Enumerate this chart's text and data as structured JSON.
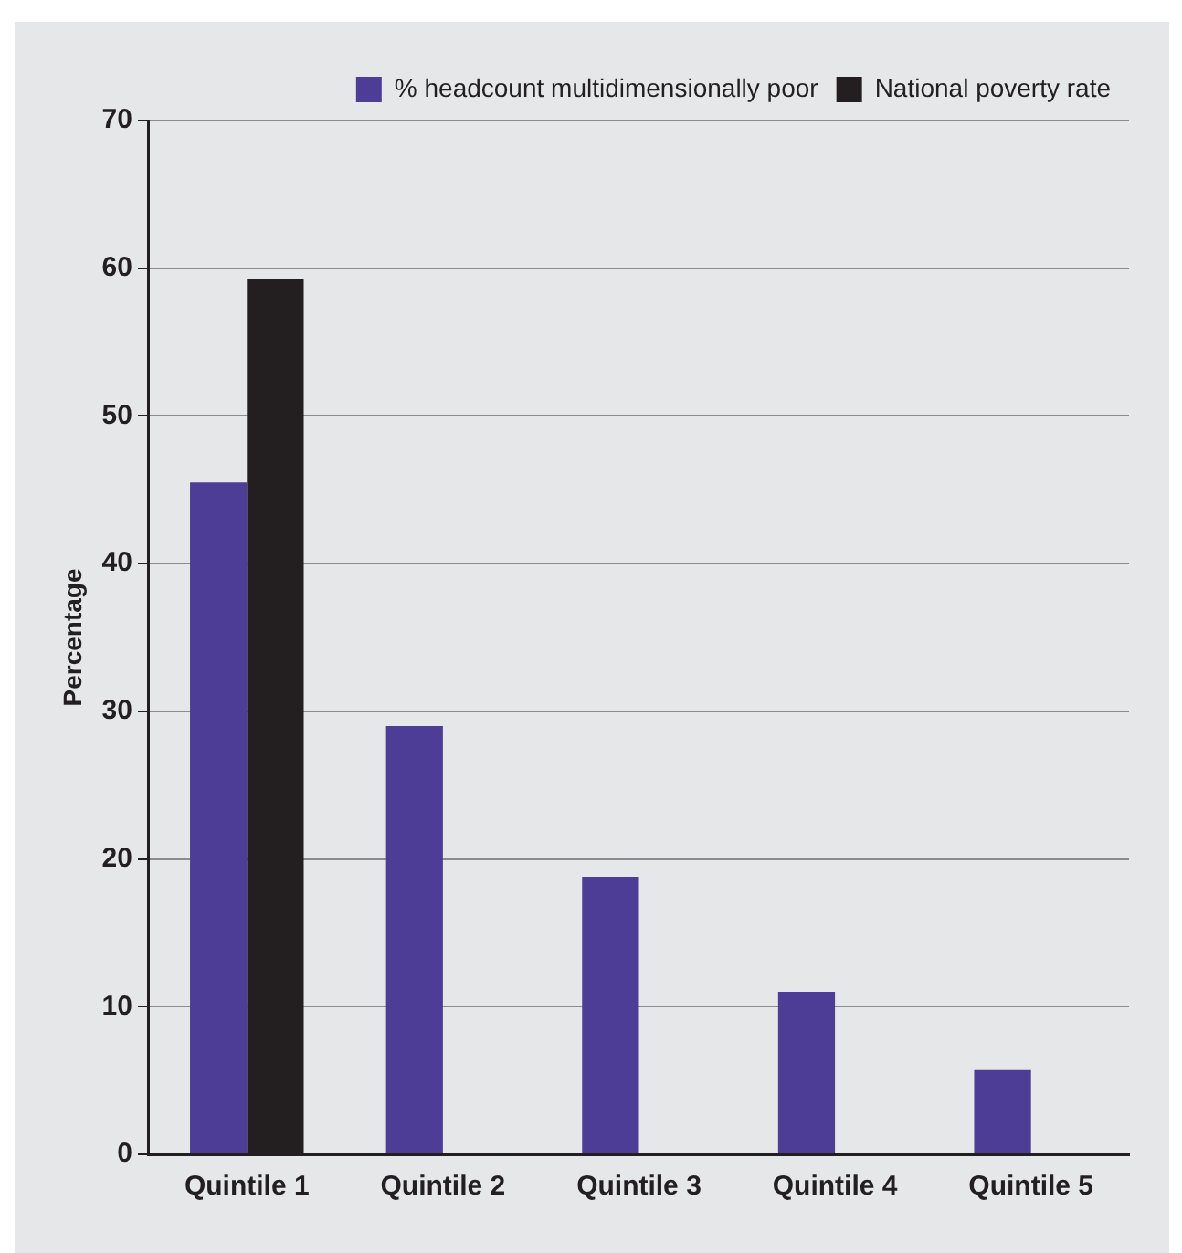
{
  "chart_data": {
    "type": "bar",
    "ylabel": "Percentage",
    "categories": [
      "Quintile 1",
      "Quintile 2",
      "Quintile 3",
      "Quintile 4",
      "Quintile 5"
    ],
    "series": [
      {
        "name": "% headcount multidimensionally poor",
        "color": "#4e3d96",
        "values": [
          45.5,
          29,
          18.8,
          11,
          5.7
        ]
      },
      {
        "name": "National poverty rate",
        "color": "#231f20",
        "values": [
          59.3,
          null,
          null,
          null,
          null
        ]
      }
    ],
    "ylim": [
      0,
      70
    ],
    "yticks": [
      0,
      10,
      20,
      30,
      40,
      50,
      60,
      70
    ],
    "grid": "y",
    "legend": "top right"
  }
}
